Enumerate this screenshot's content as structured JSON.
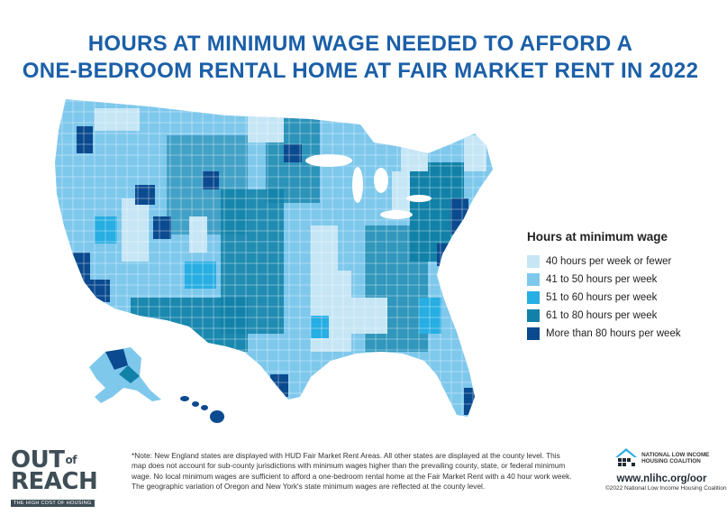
{
  "title": {
    "line1": "HOURS AT MINIMUM WAGE NEEDED TO AFFORD A",
    "line2": "ONE-BEDROOM RENTAL HOME AT FAIR MARKET RENT IN 2022"
  },
  "legend": {
    "title": "Hours at minimum wage",
    "items": [
      {
        "label": "40 hours per week or fewer",
        "color": "#c6e6f5"
      },
      {
        "label": "41 to 50 hours per week",
        "color": "#7ec8ec"
      },
      {
        "label": "51 to 60 hours per week",
        "color": "#27aee3"
      },
      {
        "label": "61 to 80 hours per week",
        "color": "#1181a8"
      },
      {
        "label": "More than 80 hours per week",
        "color": "#0b4a8f"
      }
    ]
  },
  "logo": {
    "main": "OUT",
    "of": "of",
    "reach": "REACH",
    "subtitle": "THE HIGH COST OF HOUSING"
  },
  "note": "*Note: New England states are displayed with HUD Fair Market Rent Areas. All other states are displayed at the county level. This map does not account for sub-county jurisdictions with minimum wages higher than the prevailing county, state, or federal minimum wage. No local minimum wages are sufficient to afford a one-bedroom rental home at the Fair Market Rent with a 40 hour work week. The geographic variation of Oregon and New York's state minimum wages are reflected at the county level.",
  "org": {
    "name_line1": "NATIONAL LOW INCOME",
    "name_line2": "HOUSING COALITION",
    "url": "www.nlihc.org/oor",
    "copyright": "©2022 National Low Income Housing Coalition"
  }
}
